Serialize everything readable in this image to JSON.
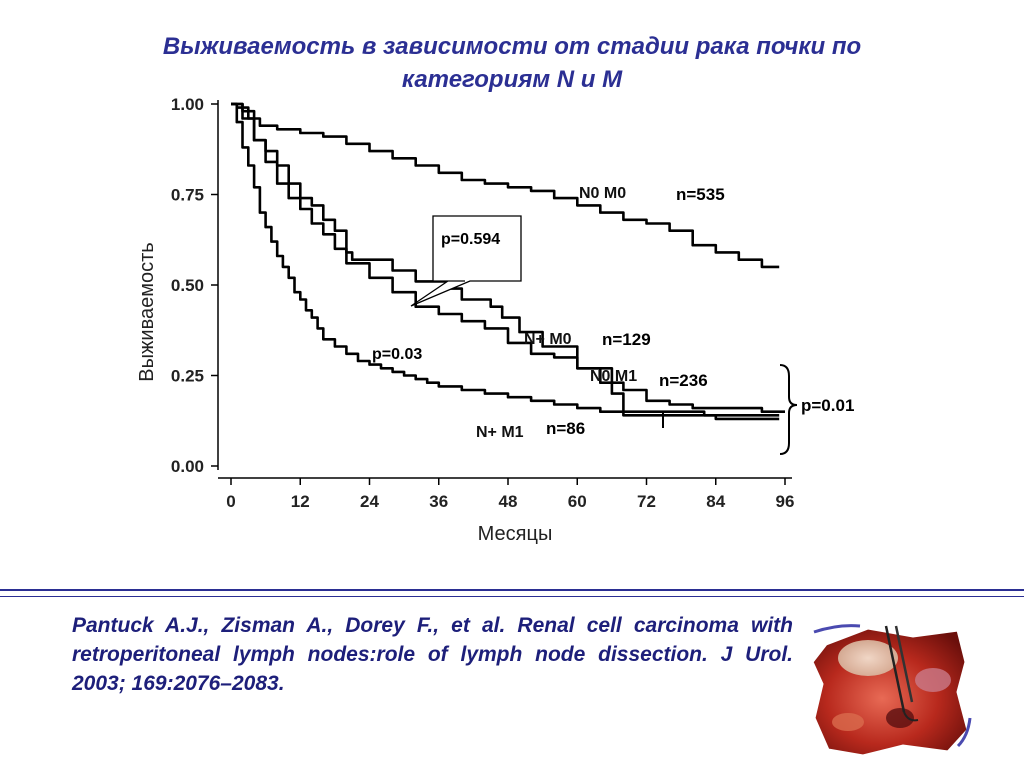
{
  "slide": {
    "title_line1": "Выживаемость в зависимости от стадии рака почки по",
    "title_line2": "категориям N и M",
    "citation": "Pantuck A.J., Zisman A., Dorey F., et al. Renal cell carcinoma with retroperitoneal lymph nodes:role of lymph node dissection. J Urol. 2003; 169:2076–2083.",
    "colors": {
      "title": "#2b2f93",
      "rule": "#2b2f93",
      "curve": "#000000"
    },
    "photo": {
      "icon": "surgical-photo"
    }
  },
  "chart_data": {
    "type": "line",
    "title": "",
    "xlabel": "Месяцы",
    "ylabel": "Выживаемость",
    "xlim": [
      0,
      96
    ],
    "ylim": [
      0,
      1
    ],
    "x_ticks": [
      "0",
      "12",
      "24",
      "36",
      "48",
      "60",
      "72",
      "84",
      "96"
    ],
    "y_ticks": [
      "0.00",
      "0.25",
      "0.50",
      "0.75",
      "1.00"
    ],
    "grid": false,
    "series": [
      {
        "name": "N0 M0",
        "n_label": "n=535",
        "points": [
          [
            0,
            1.0
          ],
          [
            1,
            0.99
          ],
          [
            3,
            0.96
          ],
          [
            5,
            0.94
          ],
          [
            8,
            0.93
          ],
          [
            12,
            0.92
          ],
          [
            16,
            0.91
          ],
          [
            20,
            0.89
          ],
          [
            24,
            0.87
          ],
          [
            28,
            0.85
          ],
          [
            32,
            0.83
          ],
          [
            36,
            0.81
          ],
          [
            40,
            0.79
          ],
          [
            44,
            0.78
          ],
          [
            48,
            0.77
          ],
          [
            52,
            0.76
          ],
          [
            56,
            0.74
          ],
          [
            60,
            0.72
          ],
          [
            64,
            0.7
          ],
          [
            68,
            0.68
          ],
          [
            72,
            0.67
          ],
          [
            76,
            0.65
          ],
          [
            80,
            0.61
          ],
          [
            84,
            0.59
          ],
          [
            88,
            0.57
          ],
          [
            92,
            0.55
          ],
          [
            95,
            0.55
          ]
        ]
      },
      {
        "name": "N+ M0",
        "n_label": "n=129",
        "points": [
          [
            0,
            1.0
          ],
          [
            2,
            0.98
          ],
          [
            4,
            0.9
          ],
          [
            6,
            0.87
          ],
          [
            8,
            0.83
          ],
          [
            10,
            0.78
          ],
          [
            12,
            0.74
          ],
          [
            14,
            0.72
          ],
          [
            16,
            0.68
          ],
          [
            18,
            0.65
          ],
          [
            20,
            0.59
          ],
          [
            21,
            0.57
          ],
          [
            24,
            0.57
          ],
          [
            28,
            0.57
          ],
          [
            28,
            0.54
          ],
          [
            32,
            0.54
          ],
          [
            32,
            0.51
          ],
          [
            36,
            0.51
          ],
          [
            38,
            0.49
          ],
          [
            40,
            0.46
          ],
          [
            44,
            0.46
          ],
          [
            45,
            0.44
          ],
          [
            47,
            0.41
          ],
          [
            50,
            0.41
          ],
          [
            50,
            0.37
          ],
          [
            54,
            0.37
          ],
          [
            54,
            0.33
          ],
          [
            60,
            0.33
          ],
          [
            60,
            0.27
          ],
          [
            66,
            0.27
          ],
          [
            66,
            0.2
          ],
          [
            68,
            0.18
          ],
          [
            68,
            0.15
          ],
          [
            80,
            0.15
          ],
          [
            82,
            0.14
          ],
          [
            95,
            0.14
          ]
        ]
      },
      {
        "name": "N0 M1",
        "n_label": "n=236",
        "points": [
          [
            0,
            1.0
          ],
          [
            2,
            0.96
          ],
          [
            4,
            0.9
          ],
          [
            6,
            0.84
          ],
          [
            8,
            0.78
          ],
          [
            10,
            0.74
          ],
          [
            12,
            0.71
          ],
          [
            14,
            0.67
          ],
          [
            16,
            0.64
          ],
          [
            18,
            0.6
          ],
          [
            20,
            0.56
          ],
          [
            24,
            0.52
          ],
          [
            28,
            0.48
          ],
          [
            32,
            0.44
          ],
          [
            36,
            0.42
          ],
          [
            40,
            0.4
          ],
          [
            44,
            0.38
          ],
          [
            48,
            0.34
          ],
          [
            52,
            0.31
          ],
          [
            56,
            0.3
          ],
          [
            60,
            0.27
          ],
          [
            64,
            0.23
          ],
          [
            68,
            0.21
          ],
          [
            72,
            0.18
          ],
          [
            76,
            0.17
          ],
          [
            80,
            0.16
          ],
          [
            88,
            0.16
          ],
          [
            92,
            0.15
          ],
          [
            96,
            0.15
          ]
        ]
      },
      {
        "name": "N+ M1",
        "n_label": "n=86",
        "points": [
          [
            0,
            1.0
          ],
          [
            1,
            0.95
          ],
          [
            2,
            0.88
          ],
          [
            3,
            0.83
          ],
          [
            4,
            0.77
          ],
          [
            5,
            0.7
          ],
          [
            6,
            0.66
          ],
          [
            7,
            0.62
          ],
          [
            8,
            0.58
          ],
          [
            9,
            0.55
          ],
          [
            10,
            0.52
          ],
          [
            11,
            0.48
          ],
          [
            12,
            0.46
          ],
          [
            13,
            0.43
          ],
          [
            14,
            0.41
          ],
          [
            15,
            0.38
          ],
          [
            16,
            0.35
          ],
          [
            18,
            0.33
          ],
          [
            20,
            0.31
          ],
          [
            22,
            0.29
          ],
          [
            24,
            0.28
          ],
          [
            26,
            0.27
          ],
          [
            28,
            0.26
          ],
          [
            30,
            0.25
          ],
          [
            32,
            0.24
          ],
          [
            34,
            0.23
          ],
          [
            36,
            0.22
          ],
          [
            40,
            0.21
          ],
          [
            44,
            0.2
          ],
          [
            48,
            0.19
          ],
          [
            52,
            0.18
          ],
          [
            56,
            0.17
          ],
          [
            60,
            0.16
          ],
          [
            64,
            0.15
          ],
          [
            68,
            0.14
          ],
          [
            72,
            0.14
          ],
          [
            84,
            0.13
          ],
          [
            95,
            0.13
          ]
        ]
      }
    ],
    "annotations": [
      {
        "text": "p=0.594"
      },
      {
        "text": "p=0.03"
      },
      {
        "text": "p=0.01"
      }
    ]
  }
}
